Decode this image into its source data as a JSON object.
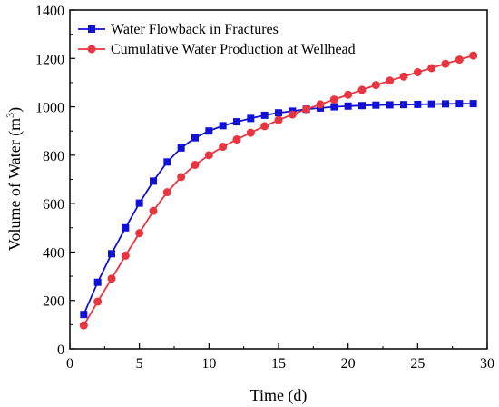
{
  "chart_data": {
    "type": "line",
    "xlabel": "Time (d)",
    "ylabel": {
      "main": "Volume of Water (m",
      "sup": "3",
      "close": ")"
    },
    "xlim": [
      0,
      30
    ],
    "ylim": [
      0,
      1400
    ],
    "xticks": [
      0,
      5,
      10,
      15,
      20,
      25,
      30
    ],
    "yticks": [
      0,
      200,
      400,
      600,
      800,
      1000,
      1200,
      1400
    ],
    "grid": false,
    "legend_position": "top-left",
    "series": [
      {
        "name": "Water Flowback in Fractures",
        "color": "#1010d8",
        "marker": "square",
        "x": [
          1,
          2,
          3,
          4,
          5,
          6,
          7,
          8,
          9,
          10,
          11,
          12,
          13,
          14,
          15,
          16,
          17,
          18,
          19,
          20,
          21,
          22,
          23,
          24,
          25,
          26,
          27,
          28,
          29
        ],
        "values": [
          142,
          275,
          393,
          500,
          602,
          693,
          772,
          830,
          872,
          900,
          922,
          938,
          952,
          965,
          975,
          982,
          990,
          995,
          1000,
          1003,
          1005,
          1007,
          1008,
          1009,
          1010,
          1011,
          1012,
          1013,
          1013
        ]
      },
      {
        "name": "Cumulative Water Production at Wellhead",
        "color": "#e8353f",
        "marker": "circle",
        "x": [
          1,
          2,
          3,
          4,
          5,
          6,
          7,
          8,
          9,
          10,
          11,
          12,
          13,
          14,
          15,
          16,
          17,
          18,
          19,
          20,
          21,
          22,
          23,
          24,
          25,
          26,
          27,
          28,
          29
        ],
        "values": [
          97,
          195,
          290,
          385,
          478,
          570,
          647,
          710,
          760,
          800,
          835,
          865,
          893,
          920,
          945,
          968,
          990,
          1010,
          1030,
          1050,
          1070,
          1090,
          1108,
          1125,
          1143,
          1160,
          1178,
          1195,
          1212
        ]
      }
    ]
  }
}
